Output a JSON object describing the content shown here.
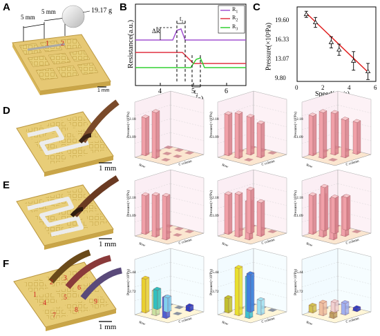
{
  "panels": {
    "A": {
      "letter": "A",
      "dim1": "5 mm",
      "dim2": "5 mm",
      "mass": "19.17 g",
      "mark1": "1",
      "mark2": "2",
      "scale": "1 mm"
    },
    "B": {
      "letter": "B",
      "ylabel": "Resistance(a.u.)",
      "xlabel": "Time(s)",
      "xticks": [
        "4",
        "5",
        "6"
      ],
      "delta_r": "ΔR",
      "t1": "t",
      "t1sub": "1",
      "t2": "t",
      "t2sub": "2",
      "legend": [
        {
          "name": "R",
          "sub": "1",
          "color": "#a050d0"
        },
        {
          "name": "R",
          "sub": "2",
          "color": "#e03040"
        },
        {
          "name": "R",
          "sub": "3",
          "color": "#30d030"
        }
      ]
    },
    "C": {
      "letter": "C",
      "ylabel": "Pressure(×10³Pa)",
      "xlabel": "Speed(cm/s)",
      "yticks": [
        "19.60",
        "16.33",
        "13.07",
        "9.80"
      ],
      "xticks": [
        "0",
        "2",
        "4",
        "6"
      ]
    },
    "D": {
      "letter": "D",
      "scale": "1 mm"
    },
    "E": {
      "letter": "E",
      "scale": "1 mm"
    },
    "F": {
      "letter": "F",
      "scale": "1 mm",
      "cells": [
        "1",
        "2",
        "3",
        "4",
        "5",
        "6",
        "7",
        "8",
        "9"
      ]
    }
  },
  "bar3d": {
    "zlabel": "Pressure(×10³Pa)",
    "xaxis": "C column",
    "yaxis": "Row",
    "ztick_top_DE": "2.18",
    "ztick_mid_DE": "1.09",
    "ztick_top_F": "5.44",
    "ztick_mid_F": "3.72",
    "ztick_low_F": "2.72"
  },
  "chart_data": [
    {
      "type": "scatter",
      "title": "",
      "xlabel": "Speed(cm/s)",
      "ylabel": "Pressure(×10³Pa)",
      "xlim": [
        0,
        6
      ],
      "ylim": [
        8.5,
        20.5
      ],
      "x": [
        0.7,
        1.4,
        2.6,
        3.2,
        4.3,
        5.4
      ],
      "values": [
        19.3,
        18.0,
        14.8,
        13.6,
        11.8,
        10.1
      ],
      "errors": [
        0.5,
        0.8,
        0.9,
        0.9,
        1.5,
        1.3
      ],
      "fit": {
        "color": "#e02020",
        "x": [
          0.7,
          5.4
        ],
        "y": [
          19.5,
          10.0
        ]
      }
    }
  ]
}
